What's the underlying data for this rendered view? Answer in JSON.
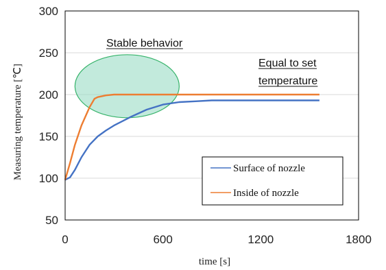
{
  "chart_data": {
    "type": "line",
    "xlabel": "time [s]",
    "ylabel": "Measuring temperature [℃]",
    "xlim": [
      0,
      1800
    ],
    "ylim": [
      50,
      300
    ],
    "xticks": [
      0,
      600,
      1200,
      1800
    ],
    "yticks": [
      50,
      100,
      150,
      200,
      250,
      300
    ],
    "grid": "horizontal",
    "legend": "bottom-right",
    "series": [
      {
        "name": "Surface of nozzle",
        "color": "#4472c4",
        "x": [
          0,
          30,
          60,
          100,
          150,
          200,
          250,
          300,
          400,
          500,
          600,
          700,
          800,
          900,
          1000,
          1200,
          1400,
          1560
        ],
        "y": [
          98,
          101,
          110,
          125,
          140,
          150,
          157,
          163,
          173,
          182,
          188,
          191,
          192,
          193,
          193,
          193,
          193,
          193
        ]
      },
      {
        "name": "Inside of nozzle",
        "color": "#ed7d31",
        "x": [
          0,
          30,
          60,
          100,
          150,
          180,
          200,
          250,
          300,
          400,
          500,
          600,
          800,
          1000,
          1200,
          1400,
          1560
        ],
        "y": [
          98,
          118,
          140,
          163,
          185,
          195,
          197,
          199,
          200,
          200,
          200,
          200,
          200,
          200,
          200,
          200,
          200
        ]
      }
    ],
    "annotations": [
      {
        "text": "Stable behavior",
        "underline": true
      },
      {
        "text": "Equal to set",
        "underline": true
      },
      {
        "text": "temperature",
        "underline": true
      }
    ],
    "highlight": {
      "shape": "ellipse",
      "color": "#8fd8c0",
      "stroke": "#36b36a"
    }
  }
}
